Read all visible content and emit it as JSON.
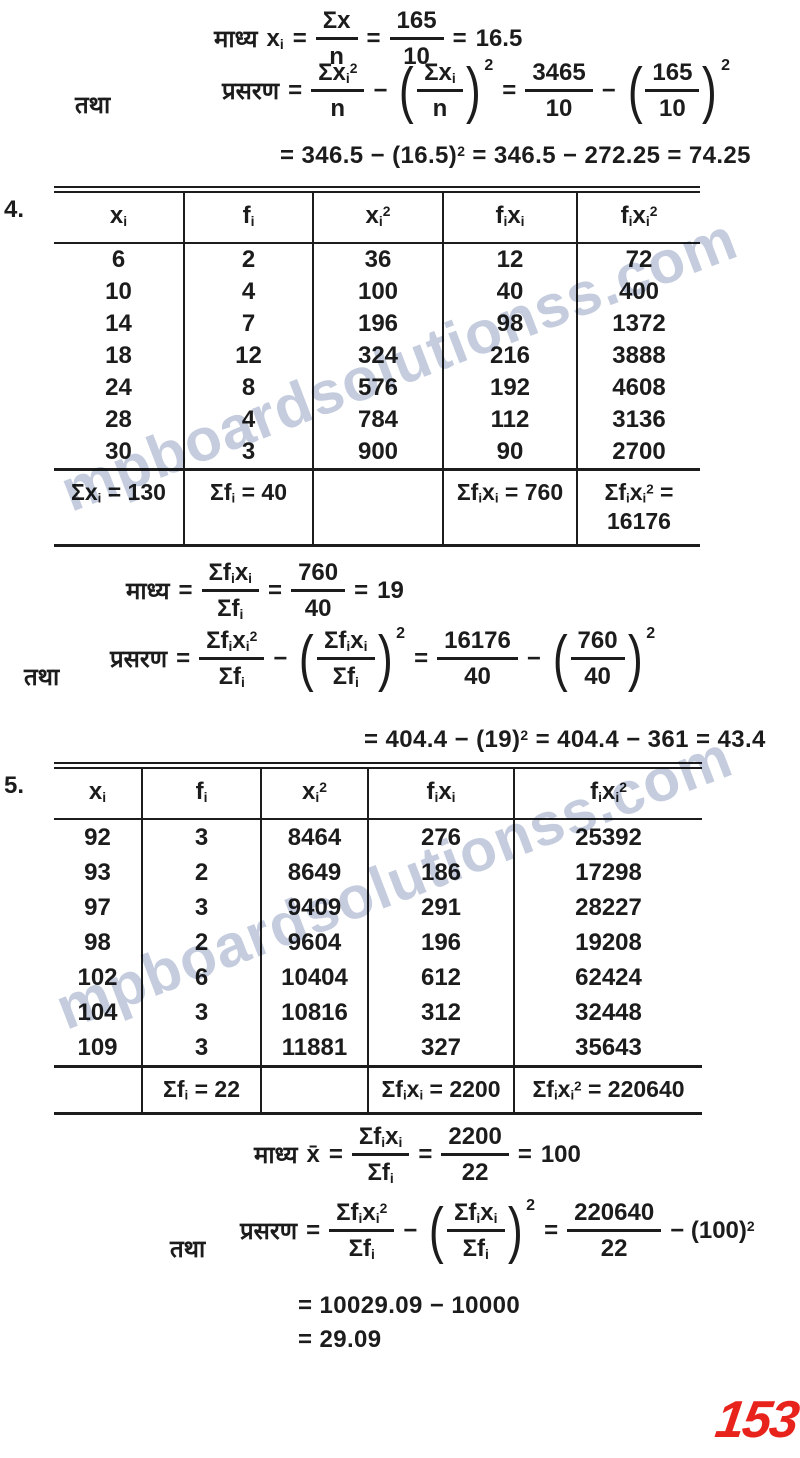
{
  "page": {
    "number": "153",
    "number_color": "#e8231c",
    "watermark_text": "mpboardsolutionss.com",
    "watermark_color": "#9fadca",
    "ink_color": "#1c1c1c"
  },
  "sym": {
    "eq": "=",
    "minus": "−",
    "lp": "(",
    "rp": ")"
  },
  "sec1": {
    "mean": {
      "label": "माध्य",
      "var": "x_i",
      "f1": {
        "num": "Σx",
        "den": "n"
      },
      "f2": {
        "num": "165",
        "den": "10"
      },
      "result": "16.5"
    },
    "also": "तथा",
    "variance": {
      "label": "प्रसरण",
      "f1": {
        "num": "Σx_i^2",
        "den": "n"
      },
      "p1": {
        "num": "Σx_i",
        "den": "n",
        "exp": "2"
      },
      "f2": {
        "num": "3465",
        "den": "10"
      },
      "p2": {
        "num": "165",
        "den": "10",
        "exp": "2"
      }
    },
    "result": "= 346.5 − (16.5)^2 = 346.5 − 272.25 = 74.25"
  },
  "table4": {
    "item": "4.",
    "headers": [
      "x_i",
      "f_i",
      "x_i^2",
      "f_ix_i",
      "f_ix_i^2"
    ],
    "rows": [
      [
        "6",
        "2",
        "36",
        "12",
        "72"
      ],
      [
        "10",
        "4",
        "100",
        "40",
        "400"
      ],
      [
        "14",
        "7",
        "196",
        "98",
        "1372"
      ],
      [
        "18",
        "12",
        "324",
        "216",
        "3888"
      ],
      [
        "24",
        "8",
        "576",
        "192",
        "4608"
      ],
      [
        "28",
        "4",
        "784",
        "112",
        "3136"
      ],
      [
        "30",
        "3",
        "900",
        "90",
        "2700"
      ]
    ],
    "totals": [
      "Σx_i = 130",
      "Σf_i = 40",
      "",
      "Σf_ix_i = 760",
      "Σf_ix_i^2 =\n16176"
    ]
  },
  "sec2": {
    "mean": {
      "label": "माध्य",
      "f1": {
        "num": "Σf_ix_i",
        "den": "Σf_i"
      },
      "f2": {
        "num": "760",
        "den": "40"
      },
      "result": "19"
    },
    "also": "तथा",
    "variance": {
      "label": "प्रसरण",
      "f1": {
        "num": "Σf_ix_i^2",
        "den": "Σf_i"
      },
      "p1": {
        "num": "Σf_ix_i",
        "den": "Σf_i",
        "exp": "2"
      },
      "f2": {
        "num": "16176",
        "den": "40"
      },
      "p2": {
        "num": "760",
        "den": "40",
        "exp": "2"
      }
    },
    "result": "= 404.4 − (19)^2 = 404.4 − 361 = 43.4"
  },
  "table5": {
    "item": "5.",
    "headers": [
      "x_i",
      "f_i",
      "x_i^2",
      "f_ix_i",
      "f_ix_i^2"
    ],
    "rows": [
      [
        "92",
        "3",
        "8464",
        "276",
        "25392"
      ],
      [
        "93",
        "2",
        "8649",
        "186",
        "17298"
      ],
      [
        "97",
        "3",
        "9409",
        "291",
        "28227"
      ],
      [
        "98",
        "2",
        "9604",
        "196",
        "19208"
      ],
      [
        "102",
        "6",
        "10404",
        "612",
        "62424"
      ],
      [
        "104",
        "3",
        "10816",
        "312",
        "32448"
      ],
      [
        "109",
        "3",
        "11881",
        "327",
        "35643"
      ]
    ],
    "totals": [
      "",
      "Σf_i = 22",
      "",
      "Σf_ix_i = 2200",
      "Σf_ix_i^2 = 220640"
    ]
  },
  "sec3": {
    "mean": {
      "label": "माध्य",
      "var": "x̄",
      "f1": {
        "num": "Σf_ix_i",
        "den": "Σf_i"
      },
      "f2": {
        "num": "2200",
        "den": "22"
      },
      "result": "100"
    },
    "also": "तथा",
    "variance": {
      "label": "प्रसरण",
      "f1": {
        "num": "Σf_ix_i^2",
        "den": "Σf_i"
      },
      "p1": {
        "num": "Σf_ix_i",
        "den": "Σf_i",
        "exp": "2"
      },
      "f2": {
        "num": "220640",
        "den": "22"
      },
      "tail": "− (100)^2"
    },
    "result1": "= 10029.09 − 10000",
    "result2": "= 29.09"
  }
}
